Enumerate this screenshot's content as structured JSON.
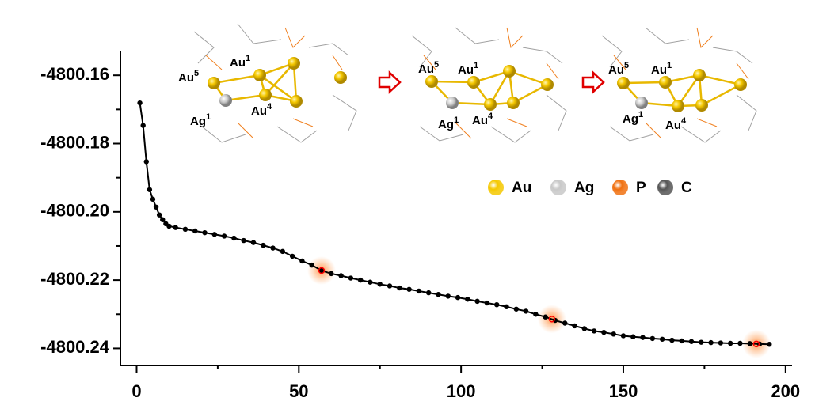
{
  "chart_data": {
    "type": "scatter",
    "x": [
      1,
      2,
      3,
      4,
      5,
      6,
      7,
      8,
      9,
      10,
      12,
      15,
      18,
      21,
      24,
      27,
      30,
      33,
      36,
      39,
      42,
      45,
      48,
      51,
      54,
      57,
      60,
      63,
      66,
      69,
      72,
      75,
      78,
      81,
      84,
      87,
      90,
      93,
      96,
      99,
      102,
      105,
      108,
      111,
      114,
      117,
      120,
      123,
      126,
      129,
      132,
      135,
      138,
      141,
      144,
      147,
      150,
      153,
      156,
      159,
      162,
      165,
      168,
      171,
      174,
      177,
      180,
      183,
      186,
      189,
      192,
      195
    ],
    "values": [
      -4800.1681,
      -4800.1747,
      -4800.1853,
      -4800.1935,
      -4800.1963,
      -4800.1986,
      -4800.2009,
      -4800.2023,
      -4800.2035,
      -4800.2042,
      -4800.2046,
      -4800.2051,
      -4800.2056,
      -4800.2061,
      -4800.2066,
      -4800.2071,
      -4800.2077,
      -4800.2084,
      -4800.209,
      -4800.2098,
      -4800.2106,
      -4800.2116,
      -4800.213,
      -4800.2144,
      -4800.2156,
      -4800.2172,
      -4800.2181,
      -4800.2187,
      -4800.2194,
      -4800.22,
      -4800.2206,
      -4800.2212,
      -4800.2217,
      -4800.2223,
      -4800.2227,
      -4800.2232,
      -4800.2237,
      -4800.2242,
      -4800.2247,
      -4800.2251,
      -4800.2256,
      -4800.2262,
      -4800.2267,
      -4800.2272,
      -4800.2278,
      -4800.2285,
      -4800.2291,
      -4800.23,
      -4800.2308,
      -4800.2318,
      -4800.2326,
      -4800.2334,
      -4800.2342,
      -4800.2349,
      -4800.2353,
      -4800.2358,
      -4800.2363,
      -4800.2366,
      -4800.2368,
      -4800.2371,
      -4800.2373,
      -4800.2376,
      -4800.2378,
      -4800.238,
      -4800.2382,
      -4800.2383,
      -4800.2384,
      -4800.2385,
      -4800.2385,
      -4800.2386,
      -4800.2387,
      -4800.2388
    ],
    "color": "#000000",
    "highlight_x": [
      57,
      128,
      191
    ],
    "highlight_values": [
      -4800.2172,
      -4800.2314,
      -4800.2387
    ],
    "highlight_color": "#ff0000",
    "xlim": [
      -5,
      202
    ],
    "xticks": [
      0,
      50,
      100,
      150,
      200
    ],
    "xminorticks": [
      25,
      75,
      125,
      175
    ],
    "ylim": [
      -4800.245,
      -4800.153
    ],
    "yticks": [
      -4800.16,
      -4800.18,
      {
        "value": -4800.2,
        "label": "-4800.20"
      },
      -4800.22,
      -4800.24
    ],
    "yminorticks": [
      -4800.17,
      -4800.19,
      -4800.21,
      -4800.23
    ],
    "structures": [
      [
        {
          "text": "Au",
          "sup": "5"
        },
        {
          "text": "Au",
          "sup": "1"
        },
        {
          "text": "Ag",
          "sup": "1"
        },
        {
          "text": "Au",
          "sup": "4"
        }
      ],
      [
        {
          "text": "Au",
          "sup": "5"
        },
        {
          "text": "Au",
          "sup": "1"
        },
        {
          "text": "Ag",
          "sup": "1"
        },
        {
          "text": "Au",
          "sup": "4"
        }
      ],
      [
        {
          "text": "Au",
          "sup": "5"
        },
        {
          "text": "Au",
          "sup": "1"
        },
        {
          "text": "Ag",
          "sup": "1"
        },
        {
          "text": "Au",
          "sup": "4"
        }
      ]
    ],
    "element_legend": [
      {
        "name": "Au",
        "color": "#f5c800"
      },
      {
        "name": "Ag",
        "color": "#c8c8c8"
      },
      {
        "name": "P",
        "color": "#f07010"
      },
      {
        "name": "C",
        "color": "#555555"
      }
    ]
  }
}
